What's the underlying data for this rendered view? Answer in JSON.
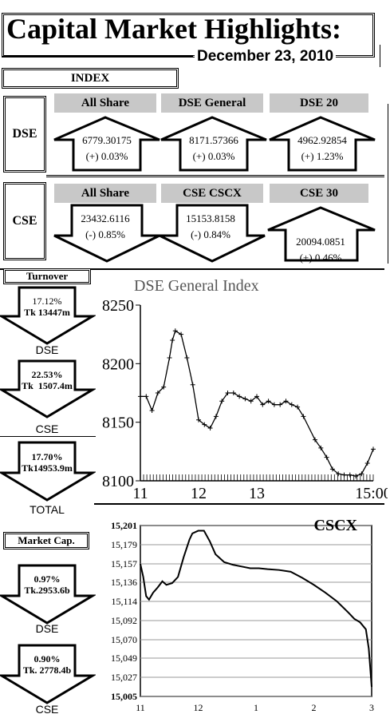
{
  "title": "Capital Market Highlights:",
  "date": "December 23, 2010",
  "index_header": "INDEX",
  "dse": {
    "label": "DSE",
    "items": [
      {
        "name": "All Share",
        "value": "6779.30175",
        "change": "(+) 0.03%",
        "dir": "up"
      },
      {
        "name": "DSE General",
        "value": "8171.57366",
        "change": "(+) 0.03%",
        "dir": "up"
      },
      {
        "name": "DSE 20",
        "value": "4962.92854",
        "change": "(+) 1.23%",
        "dir": "up"
      }
    ]
  },
  "cse": {
    "label": "CSE",
    "items": [
      {
        "name": "All Share",
        "value": "23432.6116",
        "change": "(-) 0.85%",
        "dir": "down"
      },
      {
        "name": "CSE CSCX",
        "value": "15153.8158",
        "change": "(-) 0.84%",
        "dir": "down"
      },
      {
        "name": "CSE 30",
        "value": "20094.0851",
        "change": "(+) 0.46%",
        "dir": "up"
      }
    ]
  },
  "turnover": {
    "header": "Turnover",
    "items": [
      {
        "pct": "17.12%",
        "amount": "Tk 13447m",
        "label": "DSE"
      },
      {
        "pct": "22.53%",
        "amount": "Tk  1507.4m",
        "label": "CSE"
      },
      {
        "pct": "17.70%",
        "amount": "Tk14953.9m",
        "label": "TOTAL"
      }
    ]
  },
  "market_cap": {
    "header": "Market Cap.",
    "items": [
      {
        "pct": "0.97%",
        "amount": "Tk.2953.6b",
        "label": "DSE"
      },
      {
        "pct": "0.90%",
        "amount": "Tk. 2778.4b",
        "label": "CSE"
      }
    ]
  },
  "chart_data": [
    {
      "type": "line",
      "title": "DSE General Index",
      "x_ticks": [
        11,
        12,
        13,
        15
      ],
      "x_tick_labels": [
        "11",
        "12",
        "13",
        "15:00"
      ],
      "ylim": [
        8100,
        8250
      ],
      "y_ticks": [
        8100,
        8150,
        8200,
        8250
      ],
      "x": [
        11,
        11.1,
        11.2,
        11.3,
        11.4,
        11.5,
        11.55,
        11.6,
        11.7,
        11.8,
        11.9,
        12,
        12.1,
        12.2,
        12.3,
        12.4,
        12.5,
        12.6,
        12.7,
        12.8,
        12.9,
        13,
        13.1,
        13.2,
        13.3,
        13.4,
        13.5,
        13.6,
        13.7,
        13.8,
        14,
        14.1,
        14.2,
        14.3,
        14.4,
        14.5,
        14.6,
        14.7,
        14.8,
        14.9,
        15
      ],
      "y": [
        8172,
        8172,
        8160,
        8175,
        8180,
        8205,
        8220,
        8228,
        8225,
        8205,
        8182,
        8152,
        8148,
        8145,
        8155,
        8168,
        8175,
        8175,
        8172,
        8170,
        8168,
        8172,
        8165,
        8168,
        8165,
        8165,
        8168,
        8165,
        8163,
        8155,
        8135,
        8128,
        8120,
        8110,
        8106,
        8105,
        8105,
        8104,
        8106,
        8115,
        8127
      ]
    },
    {
      "type": "line",
      "title": "CSCX",
      "x_ticks": [
        11,
        12,
        1,
        2,
        3
      ],
      "ylim": [
        15005,
        15201
      ],
      "y_ticks": [
        15005,
        15027,
        15049,
        15070,
        15092,
        15114,
        15136,
        15157,
        15179,
        15201
      ],
      "y_tick_labels": [
        "15,005",
        "15,027",
        "15,049",
        "15,070",
        "15,092",
        "15,114",
        "15,136",
        "15,157",
        "15,179",
        "15,201"
      ],
      "x": [
        0,
        0.05,
        0.1,
        0.15,
        0.22,
        0.3,
        0.38,
        0.45,
        0.55,
        0.65,
        0.75,
        0.85,
        0.9,
        1.0,
        1.1,
        1.2,
        1.3,
        1.45,
        1.6,
        1.75,
        1.9,
        2.05,
        2.2,
        2.4,
        2.6,
        2.8,
        3.0,
        3.2,
        3.4,
        3.6,
        3.7,
        3.8,
        3.85,
        3.9,
        3.95,
        4.0
      ],
      "y": [
        15157,
        15142,
        15120,
        15116,
        15124,
        15130,
        15137,
        15133,
        15135,
        15142,
        15165,
        15185,
        15192,
        15195,
        15195,
        15183,
        15168,
        15159,
        15156,
        15154,
        15152,
        15152,
        15151,
        15150,
        15148,
        15141,
        15133,
        15124,
        15114,
        15101,
        15094,
        15090,
        15086,
        15082,
        15060,
        15016
      ]
    }
  ]
}
